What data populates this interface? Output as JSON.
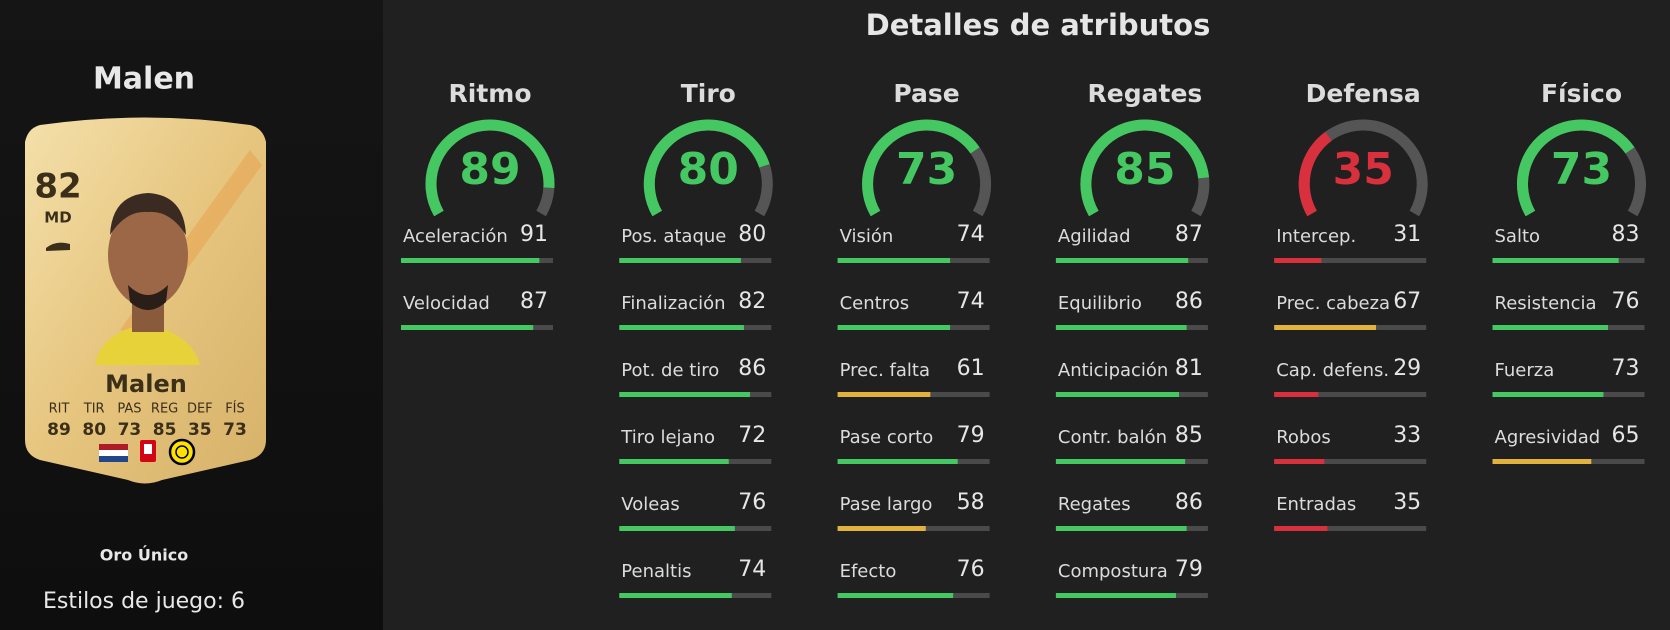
{
  "player": {
    "name": "Malen",
    "card": {
      "rating": 82,
      "position": "MD",
      "name": "Malen",
      "stats": [
        {
          "label": "RIT",
          "value": 89
        },
        {
          "label": "TIR",
          "value": 80
        },
        {
          "label": "PAS",
          "value": 73
        },
        {
          "label": "REG",
          "value": 85
        },
        {
          "label": "DEF",
          "value": 35
        },
        {
          "label": "FÍS",
          "value": 73
        }
      ]
    },
    "card_type": "Oro Único",
    "playstyles": "Estilos de juego: 6"
  },
  "attributes": {
    "title": "Detalles de atributos",
    "groups": [
      {
        "name": "Ritmo",
        "value": 89,
        "stats": [
          {
            "label": "Aceleración",
            "value": 91
          },
          {
            "label": "Velocidad",
            "value": 87
          }
        ]
      },
      {
        "name": "Tiro",
        "value": 80,
        "stats": [
          {
            "label": "Pos. ataque",
            "value": 80
          },
          {
            "label": "Finalización",
            "value": 82
          },
          {
            "label": "Pot. de tiro",
            "value": 86
          },
          {
            "label": "Tiro lejano",
            "value": 72
          },
          {
            "label": "Voleas",
            "value": 76
          },
          {
            "label": "Penaltis",
            "value": 74
          }
        ]
      },
      {
        "name": "Pase",
        "value": 73,
        "stats": [
          {
            "label": "Visión",
            "value": 74
          },
          {
            "label": "Centros",
            "value": 74
          },
          {
            "label": "Prec. falta",
            "value": 61
          },
          {
            "label": "Pase corto",
            "value": 79
          },
          {
            "label": "Pase largo",
            "value": 58
          },
          {
            "label": "Efecto",
            "value": 76
          }
        ]
      },
      {
        "name": "Regates",
        "value": 85,
        "stats": [
          {
            "label": "Agilidad",
            "value": 87
          },
          {
            "label": "Equilibrio",
            "value": 86
          },
          {
            "label": "Anticipación",
            "value": 81
          },
          {
            "label": "Contr. balón",
            "value": 85
          },
          {
            "label": "Regates",
            "value": 86
          },
          {
            "label": "Compostura",
            "value": 79
          }
        ]
      },
      {
        "name": "Defensa",
        "value": 35,
        "stats": [
          {
            "label": "Intercep.",
            "value": 31
          },
          {
            "label": "Prec. cabeza",
            "value": 67
          },
          {
            "label": "Cap. defens.",
            "value": 29
          },
          {
            "label": "Robos",
            "value": 33
          },
          {
            "label": "Entradas",
            "value": 35
          }
        ]
      },
      {
        "name": "Físico",
        "value": 73,
        "stats": [
          {
            "label": "Salto",
            "value": 83
          },
          {
            "label": "Resistencia",
            "value": 76
          },
          {
            "label": "Fuerza",
            "value": 73
          },
          {
            "label": "Agresividad",
            "value": 65
          }
        ]
      }
    ]
  }
}
